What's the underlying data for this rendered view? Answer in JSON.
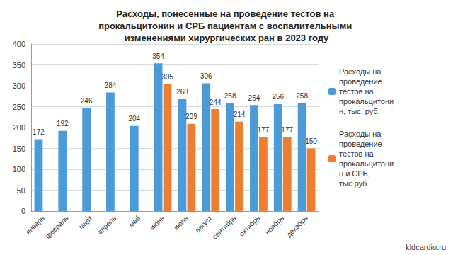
{
  "chart_data": {
    "type": "bar",
    "title": "Расходы, понесенные на проведение тестов на прокальцитонин и СРБ пациентам с воспалительными изменениями хирургических ран в 2023 году",
    "categories": [
      "январь",
      "февраль",
      "март",
      "апрель",
      "май",
      "июнь",
      "июль",
      "август",
      "сентябрь",
      "октябрь",
      "ноябрь",
      "декабрь"
    ],
    "series": [
      {
        "name": "Расходы на проведение тестов на прокальцитонин, тыс. руб.",
        "color": "#4a9bd8",
        "values": [
          172,
          192,
          246,
          284,
          204,
          354,
          268,
          306,
          258,
          254,
          256,
          258
        ]
      },
      {
        "name": "Расходы на проведение тестов на прокальцитонин и СРБ, тыс.руб.",
        "color": "#ed7d31",
        "values": [
          null,
          null,
          null,
          null,
          null,
          305,
          209,
          244,
          214,
          177,
          177,
          150
        ]
      }
    ],
    "ylim": [
      0,
      400
    ],
    "yticks": [
      0,
      50,
      100,
      150,
      200,
      250,
      300,
      350,
      400
    ],
    "grid": true,
    "legend": "right",
    "data_labels": true,
    "annotations": [
      "kldcardio.ru"
    ]
  }
}
